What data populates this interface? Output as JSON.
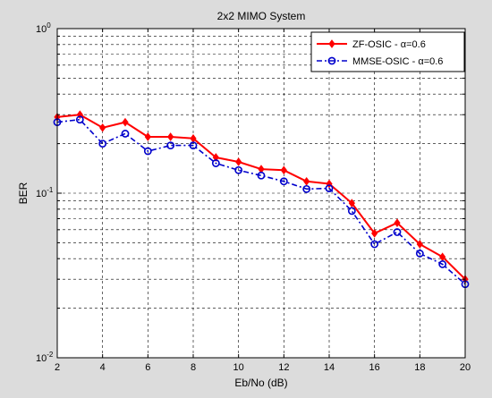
{
  "chart_data": {
    "type": "line",
    "title": "2x2 MIMO System",
    "xlabel": "Eb/No (dB)",
    "ylabel": "BER",
    "y_scale": "log",
    "xlim": [
      2,
      20
    ],
    "ylim": [
      0.01,
      1
    ],
    "x_ticks": [
      "2",
      "4",
      "6",
      "8",
      "10",
      "12",
      "14",
      "16",
      "18",
      "20"
    ],
    "y_ticks": [
      {
        "base": "10",
        "exp": "-2"
      },
      {
        "base": "10",
        "exp": "-1"
      },
      {
        "base": "10",
        "exp": "0"
      }
    ],
    "grid": "on",
    "legend_position": "top-right",
    "x": [
      2,
      3,
      4,
      5,
      6,
      7,
      8,
      9,
      10,
      11,
      12,
      13,
      14,
      15,
      16,
      17,
      18,
      19,
      20
    ],
    "series": [
      {
        "name": "ZF-OSIC - α=0.6",
        "color": "#ff0000",
        "line_style": "solid",
        "marker": "diamond",
        "values": [
          0.29,
          0.3,
          0.25,
          0.27,
          0.22,
          0.22,
          0.215,
          0.165,
          0.155,
          0.14,
          0.138,
          0.118,
          0.114,
          0.087,
          0.057,
          0.066,
          0.049,
          0.041,
          0.03
        ]
      },
      {
        "name": "MMSE-OSIC - α=0.6",
        "color": "#0000cc",
        "line_style": "dashdot",
        "marker": "circle",
        "values": [
          0.27,
          0.28,
          0.2,
          0.23,
          0.18,
          0.195,
          0.195,
          0.152,
          0.138,
          0.128,
          0.118,
          0.106,
          0.107,
          0.078,
          0.049,
          0.058,
          0.043,
          0.037,
          0.028
        ]
      }
    ]
  }
}
